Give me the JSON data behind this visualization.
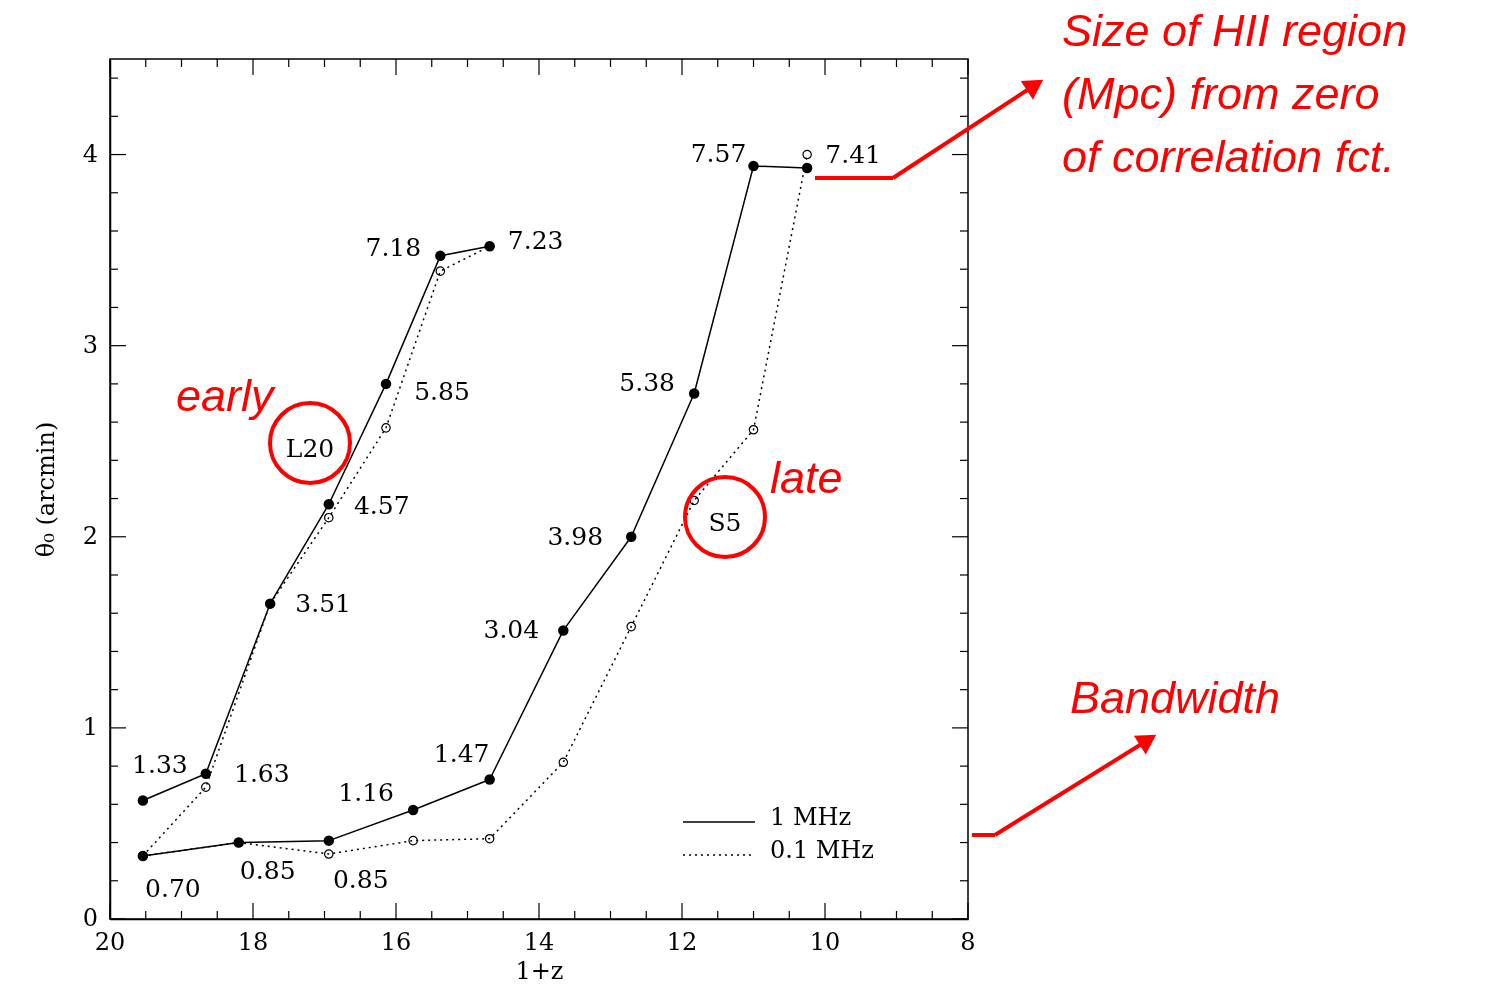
{
  "chart_data": {
    "type": "line",
    "xlabel": "1+z",
    "ylabel": "θ₀ (arcmin)",
    "xlim": [
      20,
      8
    ],
    "xticks": [
      20,
      {
        "value": 19.5,
        "label": null
      },
      {
        "value": 19,
        "label": null
      },
      {
        "value": 18.5,
        "label": null
      },
      18,
      {
        "value": 17.5,
        "label": null
      },
      {
        "value": 17,
        "label": null
      },
      {
        "value": 16.5,
        "label": null
      },
      16,
      {
        "value": 15.5,
        "label": null
      },
      {
        "value": 15,
        "label": null
      },
      {
        "value": 14.5,
        "label": null
      },
      14,
      {
        "value": 13.5,
        "label": null
      },
      {
        "value": 13,
        "label": null
      },
      {
        "value": 12.5,
        "label": null
      },
      12,
      {
        "value": 11.5,
        "label": null
      },
      {
        "value": 11,
        "label": null
      },
      {
        "value": 10.5,
        "label": null
      },
      10,
      {
        "value": 9.5,
        "label": null
      },
      {
        "value": 9,
        "label": null
      },
      {
        "value": 8.5,
        "label": null
      },
      8
    ],
    "ylim": [
      0,
      4.5
    ],
    "yticks": [
      0,
      {
        "value": 0.2,
        "label": null
      },
      {
        "value": 0.4,
        "label": null
      },
      {
        "value": 0.6,
        "label": null
      },
      {
        "value": 0.8,
        "label": null
      },
      1,
      {
        "value": 1.2,
        "label": null
      },
      {
        "value": 1.4,
        "label": null
      },
      {
        "value": 1.6,
        "label": null
      },
      {
        "value": 1.8,
        "label": null
      },
      2,
      {
        "value": 2.2,
        "label": null
      },
      {
        "value": 2.4,
        "label": null
      },
      {
        "value": 2.6,
        "label": null
      },
      {
        "value": 2.8,
        "label": null
      },
      3,
      {
        "value": 3.2,
        "label": null
      },
      {
        "value": 3.4,
        "label": null
      },
      {
        "value": 3.6,
        "label": null
      },
      {
        "value": 3.8,
        "label": null
      },
      4,
      {
        "value": 4.2,
        "label": null
      },
      {
        "value": 4.4,
        "label": null
      }
    ],
    "grid": false,
    "legend": "bottom right",
    "marker": "circle",
    "series": [
      {
        "name": "1 MHz",
        "color": "#000000",
        "line_style": "solid",
        "x": [
          19.54,
          18.66,
          17.76,
          16.94,
          16.14,
          15.38,
          14.69
        ],
        "values": [
          0.62,
          0.76,
          1.65,
          2.17,
          2.8,
          3.47,
          3.52
        ]
      },
      {
        "name": "0.1 MHz",
        "color": "#000000",
        "line_style": "dotted",
        "x": [
          19.54,
          18.66,
          17.76,
          16.94,
          16.14,
          15.38,
          14.69
        ],
        "values": [
          0.33,
          0.69,
          1.65,
          2.1,
          2.57,
          3.39,
          3.52
        ]
      },
      {
        "color": "#000000",
        "line_style": "solid",
        "x": [
          19.54,
          18.2,
          16.94,
          15.76,
          14.69,
          13.66,
          12.71,
          11.83,
          11.0,
          10.25
        ],
        "values": [
          0.33,
          0.4,
          0.41,
          0.57,
          0.73,
          1.51,
          2.0,
          2.75,
          3.94,
          3.93
        ]
      },
      {
        "color": "#000000",
        "line_style": "dotted",
        "x": [
          19.54,
          18.2,
          16.94,
          15.76,
          14.69,
          13.66,
          12.71,
          11.83,
          11.0,
          10.25
        ],
        "values": [
          0.33,
          0.4,
          0.34,
          0.41,
          0.42,
          0.82,
          1.53,
          2.19,
          2.56,
          4.0
        ]
      }
    ],
    "annotations": [
      {
        "text": "1.33",
        "x": 19.54,
        "y": 0.62
      },
      {
        "text": "1.63",
        "x": 18.66,
        "y": 0.76
      },
      {
        "text": "3.51",
        "x": 17.76,
        "y": 1.65
      },
      {
        "text": "4.57",
        "x": 16.94,
        "y": 2.17
      },
      {
        "text": "5.85",
        "x": 16.14,
        "y": 2.8
      },
      {
        "text": "7.18",
        "x": 15.38,
        "y": 3.47
      },
      {
        "text": "7.23",
        "x": 14.69,
        "y": 3.52
      },
      {
        "text": "0.70",
        "x": 19.54,
        "y": 0.33
      },
      {
        "text": "0.85",
        "x": 18.2,
        "y": 0.4
      },
      {
        "text": "0.85",
        "x": 16.94,
        "y": 0.41
      },
      {
        "text": "1.16",
        "x": 15.76,
        "y": 0.57
      },
      {
        "text": "1.47",
        "x": 14.69,
        "y": 0.73
      },
      {
        "text": "3.04",
        "x": 13.66,
        "y": 1.51
      },
      {
        "text": "3.98",
        "x": 12.71,
        "y": 2.0
      },
      {
        "text": "5.38",
        "x": 11.83,
        "y": 2.75
      },
      {
        "text": "7.57",
        "x": 11.0,
        "y": 3.94
      },
      {
        "text": "7.41",
        "x": 10.25,
        "y": 4.0
      },
      "L20",
      "S5",
      "Size of HII region\n(Mpc) from zero\nof correlation fct.",
      "early",
      "late",
      "Bandwidth"
    ]
  }
}
